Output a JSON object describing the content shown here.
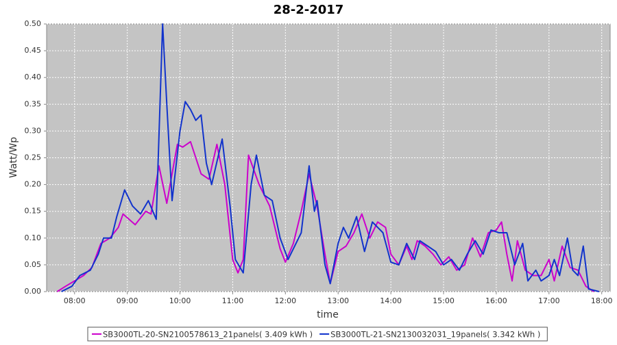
{
  "chart_data": {
    "type": "line",
    "title": "28-2-2017",
    "x_label": "time",
    "y_label": "Watt/Wp",
    "xlim": [
      7.47,
      18.16
    ],
    "ylim": [
      0,
      0.5
    ],
    "grid": true,
    "xticks": [
      {
        "value": 8,
        "label": "08:00"
      },
      {
        "value": 9,
        "label": "09:00"
      },
      {
        "value": 10,
        "label": "10:00"
      },
      {
        "value": 11,
        "label": "11:00"
      },
      {
        "value": 12,
        "label": "12:00"
      },
      {
        "value": 13,
        "label": "13:00"
      },
      {
        "value": 14,
        "label": "14:00"
      },
      {
        "value": 15,
        "label": "15:00"
      },
      {
        "value": 16,
        "label": "16:00"
      },
      {
        "value": 17,
        "label": "17:00"
      },
      {
        "value": 18,
        "label": "18:00"
      }
    ],
    "yticks": [
      {
        "value": 0,
        "label": "0.00"
      },
      {
        "value": 0.05,
        "label": "0.05"
      },
      {
        "value": 0.1,
        "label": "0.10"
      },
      {
        "value": 0.15,
        "label": "0.15"
      },
      {
        "value": 0.2,
        "label": "0.20"
      },
      {
        "value": 0.25,
        "label": "0.25"
      },
      {
        "value": 0.3,
        "label": "0.30"
      },
      {
        "value": 0.35,
        "label": "0.35"
      },
      {
        "value": 0.4,
        "label": "0.40"
      },
      {
        "value": 0.45,
        "label": "0.45"
      },
      {
        "value": 0.5,
        "label": "0.50"
      }
    ],
    "legend": "bottom",
    "series": [
      {
        "name": "SB3000TL-20-SN2100578613_21panels( 3.409 kWh )",
        "color": "#cc00cc",
        "x": [
          7.67,
          7.83,
          8.0,
          8.17,
          8.33,
          8.5,
          8.67,
          8.83,
          8.92,
          9.15,
          9.35,
          9.45,
          9.6,
          9.75,
          9.95,
          10.05,
          10.2,
          10.4,
          10.55,
          10.7,
          10.85,
          11.0,
          11.1,
          11.2,
          11.3,
          11.5,
          11.7,
          11.9,
          12.0,
          12.15,
          12.3,
          12.45,
          12.6,
          12.75,
          12.85,
          13.0,
          13.15,
          13.3,
          13.45,
          13.6,
          13.75,
          13.9,
          14.0,
          14.15,
          14.3,
          14.4,
          14.5,
          14.65,
          14.8,
          14.95,
          15.1,
          15.25,
          15.4,
          15.55,
          15.7,
          15.85,
          16.0,
          16.1,
          16.2,
          16.3,
          16.4,
          16.55,
          16.7,
          16.85,
          17.0,
          17.1,
          17.25,
          17.4,
          17.55,
          17.7,
          17.85
        ],
        "values": [
          0,
          0.01,
          0.02,
          0.03,
          0.045,
          0.09,
          0.1,
          0.12,
          0.145,
          0.125,
          0.15,
          0.145,
          0.235,
          0.165,
          0.275,
          0.27,
          0.28,
          0.22,
          0.21,
          0.275,
          0.2,
          0.06,
          0.035,
          0.06,
          0.255,
          0.2,
          0.16,
          0.08,
          0.055,
          0.09,
          0.15,
          0.22,
          0.16,
          0.07,
          0.015,
          0.075,
          0.085,
          0.11,
          0.145,
          0.1,
          0.13,
          0.12,
          0.07,
          0.05,
          0.085,
          0.06,
          0.095,
          0.085,
          0.07,
          0.05,
          0.065,
          0.04,
          0.05,
          0.1,
          0.065,
          0.11,
          0.115,
          0.13,
          0.07,
          0.02,
          0.095,
          0.04,
          0.03,
          0.03,
          0.06,
          0.02,
          0.085,
          0.045,
          0.04,
          0.01,
          0
        ]
      },
      {
        "name": "SB3000TL-21-SN2130032031_19panels( 3.342 kWh )",
        "color": "#1133cc",
        "x": [
          7.75,
          7.95,
          8.1,
          8.3,
          8.45,
          8.55,
          8.7,
          8.8,
          8.95,
          9.1,
          9.25,
          9.4,
          9.55,
          9.67,
          9.75,
          9.85,
          10.0,
          10.1,
          10.2,
          10.3,
          10.4,
          10.5,
          10.6,
          10.8,
          10.95,
          11.05,
          11.2,
          11.35,
          11.45,
          11.6,
          11.75,
          11.9,
          12.05,
          12.15,
          12.3,
          12.45,
          12.55,
          12.6,
          12.75,
          12.85,
          13.0,
          13.1,
          13.2,
          13.35,
          13.5,
          13.65,
          13.85,
          14.0,
          14.15,
          14.3,
          14.45,
          14.55,
          14.7,
          14.85,
          15.0,
          15.15,
          15.3,
          15.45,
          15.6,
          15.75,
          15.9,
          16.05,
          16.2,
          16.35,
          16.5,
          16.6,
          16.75,
          16.85,
          17.0,
          17.1,
          17.2,
          17.35,
          17.45,
          17.55,
          17.65,
          17.75,
          17.95
        ],
        "values": [
          0,
          0.01,
          0.03,
          0.04,
          0.07,
          0.1,
          0.1,
          0.14,
          0.19,
          0.16,
          0.145,
          0.17,
          0.135,
          0.5,
          0.35,
          0.17,
          0.3,
          0.355,
          0.34,
          0.32,
          0.33,
          0.24,
          0.2,
          0.285,
          0.16,
          0.06,
          0.035,
          0.2,
          0.255,
          0.18,
          0.17,
          0.1,
          0.06,
          0.08,
          0.11,
          0.235,
          0.15,
          0.17,
          0.05,
          0.015,
          0.09,
          0.12,
          0.1,
          0.14,
          0.075,
          0.13,
          0.11,
          0.055,
          0.05,
          0.09,
          0.06,
          0.095,
          0.085,
          0.075,
          0.05,
          0.06,
          0.04,
          0.07,
          0.095,
          0.07,
          0.115,
          0.11,
          0.11,
          0.05,
          0.09,
          0.02,
          0.04,
          0.02,
          0.03,
          0.06,
          0.03,
          0.1,
          0.04,
          0.03,
          0.085,
          0.005,
          0
        ]
      }
    ]
  }
}
